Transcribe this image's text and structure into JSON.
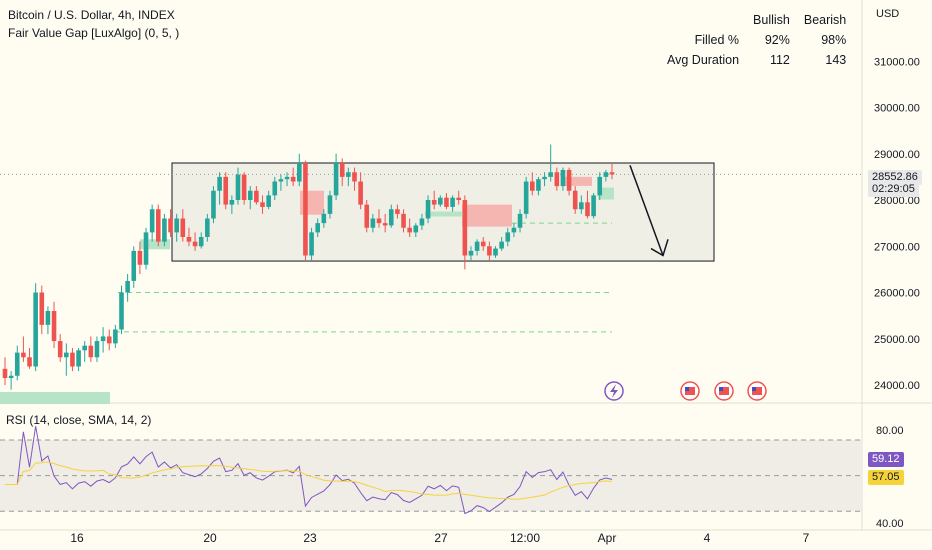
{
  "header": {
    "title": "Bitcoin / U.S. Dollar, 4h, INDEX",
    "indicator": "Fair Value Gap [LuxAlgo] (0, 5, )"
  },
  "stats": {
    "col_bullish": "Bullish",
    "col_bearish": "Bearish",
    "rows": [
      {
        "label": "Filled %",
        "bullish": "92%",
        "bearish": "98%"
      },
      {
        "label": "Avg Duration",
        "bullish": "112",
        "bearish": "143"
      }
    ]
  },
  "price_axis": {
    "currency": "USD",
    "ticks": [
      "31000.00",
      "30000.00",
      "29000.00",
      "28000.00",
      "27000.00",
      "26000.00",
      "25000.00",
      "24000.00"
    ]
  },
  "price_tag": {
    "price": "28552.86",
    "countdown": "02:29:05"
  },
  "rsi": {
    "title": "RSI (14, close, SMA, 14, 2)",
    "ticks": [
      "80.00",
      "40.00"
    ],
    "value": "59.12",
    "sma_value": "57.05"
  },
  "time_axis": {
    "ticks": [
      "16",
      "20",
      "23",
      "27",
      "12:00",
      "Apr",
      "4",
      "7"
    ]
  },
  "colors": {
    "up": "#26a69a",
    "down": "#ef5350",
    "rsi": "#7e57c2",
    "sma": "#f5d33b",
    "bull_fvg": "#b7e4c7",
    "bear_fvg": "#f5b5b0"
  },
  "chart_data": {
    "type": "candlestick",
    "y_range": [
      23600,
      31700
    ],
    "last_price": 28552.86,
    "candles_ohlc": [
      [
        24350,
        24600,
        24000,
        24150
      ],
      [
        24150,
        24300,
        23900,
        24200
      ],
      [
        24200,
        24850,
        24100,
        24700
      ],
      [
        24700,
        25050,
        24500,
        24600
      ],
      [
        24600,
        24800,
        24350,
        24400
      ],
      [
        24400,
        26200,
        24300,
        26000
      ],
      [
        26000,
        26150,
        25100,
        25300
      ],
      [
        25300,
        25700,
        25100,
        25600
      ],
      [
        25600,
        25800,
        24800,
        24950
      ],
      [
        24950,
        25100,
        24500,
        24600
      ],
      [
        24600,
        24900,
        24200,
        24700
      ],
      [
        24700,
        24800,
        24300,
        24400
      ],
      [
        24400,
        24800,
        24300,
        24750
      ],
      [
        24750,
        24950,
        24500,
        24850
      ],
      [
        24850,
        25050,
        24500,
        24600
      ],
      [
        24600,
        25050,
        24500,
        24950
      ],
      [
        24950,
        25250,
        24700,
        25050
      ],
      [
        25050,
        25200,
        24750,
        24900
      ],
      [
        24900,
        25300,
        24800,
        25200
      ],
      [
        25200,
        26150,
        25100,
        26000
      ],
      [
        26000,
        26400,
        25800,
        26250
      ],
      [
        26250,
        27000,
        26100,
        26900
      ],
      [
        26900,
        27100,
        26400,
        26600
      ],
      [
        26600,
        27400,
        26500,
        27300
      ],
      [
        27300,
        27900,
        27100,
        27800
      ],
      [
        27800,
        27900,
        27000,
        27100
      ],
      [
        27100,
        27700,
        27000,
        27600
      ],
      [
        27600,
        27800,
        27200,
        27300
      ],
      [
        27300,
        27700,
        27100,
        27600
      ],
      [
        27600,
        27800,
        27100,
        27200
      ],
      [
        27200,
        27400,
        27000,
        27100
      ],
      [
        27100,
        27300,
        26900,
        27000
      ],
      [
        27000,
        27300,
        26950,
        27200
      ],
      [
        27200,
        27700,
        27100,
        27600
      ],
      [
        27600,
        28300,
        27500,
        28200
      ],
      [
        28200,
        28600,
        27900,
        28500
      ],
      [
        28500,
        28600,
        27800,
        27900
      ],
      [
        27900,
        28100,
        27700,
        28000
      ],
      [
        28000,
        28700,
        27900,
        28550
      ],
      [
        28550,
        28600,
        27900,
        28000
      ],
      [
        28000,
        28300,
        27800,
        28200
      ],
      [
        28200,
        28300,
        27900,
        27950
      ],
      [
        27950,
        28100,
        27700,
        27850
      ],
      [
        27850,
        28200,
        27800,
        28100
      ],
      [
        28100,
        28500,
        28000,
        28400
      ],
      [
        28400,
        28550,
        28200,
        28450
      ],
      [
        28450,
        28600,
        28300,
        28500
      ],
      [
        28500,
        28700,
        28300,
        28400
      ],
      [
        28400,
        29000,
        28300,
        28800
      ],
      [
        28800,
        28850,
        26700,
        26800
      ],
      [
        26800,
        27400,
        26700,
        27300
      ],
      [
        27300,
        27600,
        27200,
        27500
      ],
      [
        27500,
        27800,
        27400,
        27700
      ],
      [
        27700,
        28200,
        27600,
        28100
      ],
      [
        28100,
        29000,
        28000,
        28800
      ],
      [
        28800,
        28900,
        28300,
        28500
      ],
      [
        28500,
        28700,
        28300,
        28600
      ],
      [
        28600,
        28700,
        28200,
        28400
      ],
      [
        28400,
        28600,
        27800,
        27900
      ],
      [
        27900,
        28000,
        27300,
        27400
      ],
      [
        27400,
        27700,
        27300,
        27600
      ],
      [
        27600,
        27800,
        27400,
        27500
      ],
      [
        27500,
        27700,
        27300,
        27450
      ],
      [
        27450,
        27900,
        27400,
        27800
      ],
      [
        27800,
        27900,
        27600,
        27700
      ],
      [
        27700,
        27800,
        27300,
        27400
      ],
      [
        27400,
        27600,
        27200,
        27300
      ],
      [
        27300,
        27500,
        27200,
        27450
      ],
      [
        27450,
        27700,
        27350,
        27600
      ],
      [
        27600,
        28100,
        27500,
        28000
      ],
      [
        28000,
        28200,
        27800,
        27900
      ],
      [
        27900,
        28100,
        27850,
        28050
      ],
      [
        28050,
        28150,
        27800,
        27850
      ],
      [
        27850,
        28100,
        27750,
        28050
      ],
      [
        28050,
        28200,
        27900,
        28000
      ],
      [
        28000,
        28100,
        26500,
        26800
      ],
      [
        26800,
        27000,
        26700,
        26900
      ],
      [
        26900,
        27150,
        26800,
        27100
      ],
      [
        27100,
        27200,
        26900,
        27000
      ],
      [
        27000,
        27100,
        26700,
        26800
      ],
      [
        26800,
        27000,
        26750,
        26950
      ],
      [
        26950,
        27200,
        26900,
        27100
      ],
      [
        27100,
        27400,
        27000,
        27300
      ],
      [
        27300,
        27500,
        27200,
        27400
      ],
      [
        27400,
        27800,
        27300,
        27700
      ],
      [
        27700,
        28500,
        27600,
        28400
      ],
      [
        28400,
        28600,
        28100,
        28200
      ],
      [
        28200,
        28500,
        28100,
        28450
      ],
      [
        28450,
        28600,
        28300,
        28500
      ],
      [
        28500,
        29200,
        28400,
        28600
      ],
      [
        28600,
        28700,
        28200,
        28300
      ],
      [
        28300,
        28700,
        28200,
        28650
      ],
      [
        28650,
        28700,
        28100,
        28200
      ],
      [
        28200,
        28300,
        27700,
        27800
      ],
      [
        27800,
        28100,
        27700,
        27950
      ],
      [
        27950,
        28200,
        27600,
        27650
      ],
      [
        27650,
        28150,
        27600,
        28100
      ],
      [
        28100,
        28600,
        28000,
        28500
      ],
      [
        28500,
        28650,
        28400,
        28600
      ],
      [
        28600,
        28800,
        28450,
        28553
      ]
    ],
    "range_box": {
      "top": 28800,
      "bottom": 26680
    },
    "fvg_levels": [
      26000,
      25150,
      27500
    ]
  }
}
